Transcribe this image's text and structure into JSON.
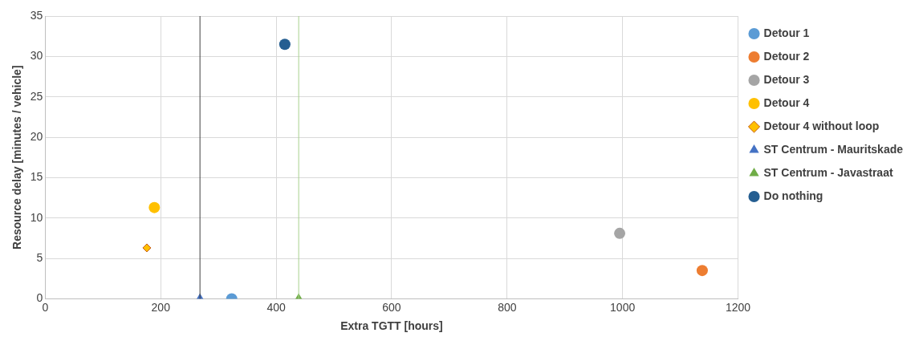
{
  "chart_data": {
    "type": "scatter",
    "xlabel": "Extra TGTT [hours]",
    "ylabel": "Resource delay [minutes / vehicle]",
    "xlim": [
      0,
      1200
    ],
    "xticks": [
      0,
      200,
      400,
      600,
      800,
      1000,
      1200
    ],
    "ylim": [
      0,
      35
    ],
    "yticks": [
      0,
      5,
      10,
      15,
      20,
      25,
      30,
      35
    ],
    "grid": true,
    "legend": "right",
    "marker": "circle",
    "series": [
      {
        "name": "Detour 1",
        "color": "#5b9bd5",
        "x": [
          323
        ],
        "values": [
          0
        ]
      },
      {
        "name": "Detour 2",
        "color": "#ed7d31",
        "x": [
          1138
        ],
        "values": [
          3.5
        ]
      },
      {
        "name": "Detour 3",
        "color": "#a5a5a5",
        "x": [
          995
        ],
        "values": [
          8.1
        ]
      },
      {
        "name": "Detour 4",
        "color": "#ffc000",
        "x": [
          189
        ],
        "values": [
          11.3
        ]
      },
      {
        "name": "Detour 4 without loop",
        "color": "#ffc000",
        "marker": "diamond",
        "x": [
          176
        ],
        "values": [
          6.3
        ]
      },
      {
        "name": "ST Centrum - Mauritskade",
        "color": "#4472c4",
        "marker": "triangle",
        "x": [
          268
        ],
        "values": [
          0
        ]
      },
      {
        "name": "ST Centrum - Javastraat",
        "color": "#70ad47",
        "marker": "triangle",
        "x": [
          439
        ],
        "values": [
          0
        ]
      },
      {
        "name": "Do nothing",
        "color": "#255e91",
        "x": [
          415
        ],
        "values": [
          31.5
        ]
      }
    ],
    "ref_lines": [
      {
        "axis": "x",
        "value": 268,
        "color": "#404040"
      },
      {
        "axis": "x",
        "value": 439,
        "color": "#a9d18e"
      }
    ]
  }
}
